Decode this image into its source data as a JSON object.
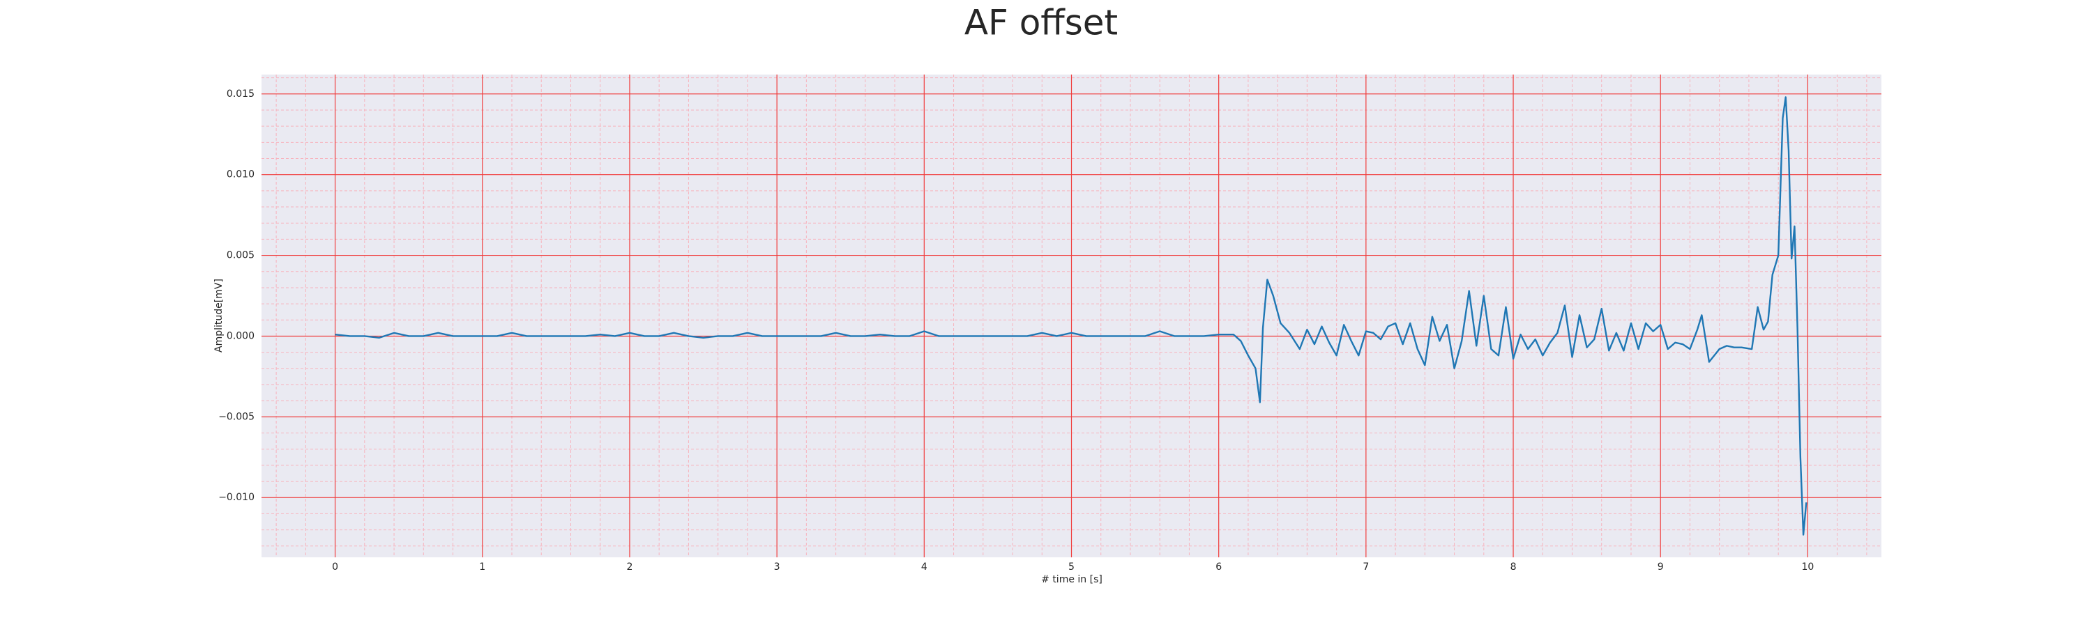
{
  "chart_data": {
    "type": "line",
    "title": "AF offset",
    "x_label": "# time in [s]",
    "y_label": "Amplitude[mV]",
    "color": "#1f77b4",
    "grid": true,
    "grid_color": "#f03c3c",
    "minor_grid_color": "#f7b3bd",
    "background": "#eaeaf2",
    "xlim": [
      -0.5,
      10.5
    ],
    "ylim": [
      -0.0137,
      0.0162
    ],
    "xticks": [
      0,
      1,
      2,
      3,
      4,
      5,
      6,
      7,
      8,
      9,
      10
    ],
    "yticks": [
      {
        "value": -0.01,
        "label": "−0.010"
      },
      {
        "value": -0.005,
        "label": "−0.005"
      },
      {
        "value": 0,
        "label": "0.000"
      },
      {
        "value": 0.005,
        "label": "0.005"
      },
      {
        "value": 0.01,
        "label": "0.010"
      },
      {
        "value": 0.015,
        "label": "0.015"
      }
    ],
    "x": [
      0,
      0.1,
      0.2,
      0.3,
      0.4,
      0.5,
      0.6,
      0.7,
      0.8,
      0.9,
      1,
      1.1,
      1.2,
      1.3,
      1.4,
      1.5,
      1.6,
      1.7,
      1.8,
      1.9,
      2,
      2.1,
      2.2,
      2.3,
      2.4,
      2.5,
      2.6,
      2.7,
      2.8,
      2.9,
      3,
      3.1,
      3.2,
      3.3,
      3.4,
      3.5,
      3.6,
      3.7,
      3.8,
      3.9,
      4,
      4.1,
      4.2,
      4.3,
      4.4,
      4.5,
      4.6,
      4.7,
      4.8,
      4.9,
      5,
      5.1,
      5.2,
      5.3,
      5.4,
      5.5,
      5.6,
      5.7,
      5.8,
      5.9,
      6,
      6.1,
      6.15,
      6.2,
      6.25,
      6.28,
      6.3,
      6.33,
      6.37,
      6.42,
      6.48,
      6.55,
      6.6,
      6.65,
      6.7,
      6.75,
      6.8,
      6.85,
      6.9,
      6.95,
      7,
      7.05,
      7.1,
      7.15,
      7.2,
      7.25,
      7.3,
      7.35,
      7.4,
      7.45,
      7.5,
      7.55,
      7.6,
      7.65,
      7.7,
      7.75,
      7.8,
      7.85,
      7.9,
      7.95,
      8,
      8.05,
      8.1,
      8.15,
      8.2,
      8.25,
      8.3,
      8.35,
      8.4,
      8.45,
      8.5,
      8.55,
      8.6,
      8.65,
      8.7,
      8.75,
      8.8,
      8.85,
      8.9,
      8.95,
      9,
      9.05,
      9.1,
      9.15,
      9.2,
      9.25,
      9.28,
      9.33,
      9.4,
      9.45,
      9.5,
      9.55,
      9.62,
      9.66,
      9.7,
      9.73,
      9.76,
      9.8,
      9.83,
      9.85,
      9.87,
      9.89,
      9.91,
      9.93,
      9.95,
      9.97,
      9.99
    ],
    "values": [
      0.0001,
      0,
      0,
      -0.0001,
      0.0002,
      0,
      0,
      0.0002,
      0,
      0,
      0,
      0,
      0.0002,
      0,
      0,
      0,
      0,
      0,
      0.0001,
      0,
      0.0002,
      0,
      0,
      0.0002,
      0,
      -0.0001,
      0,
      0,
      0.0002,
      0,
      0,
      0,
      0,
      0,
      0.0002,
      0,
      0,
      0.0001,
      0,
      0,
      0.0003,
      0,
      0,
      0,
      0,
      0,
      0,
      0,
      0.0002,
      0,
      0.0002,
      0,
      0,
      0,
      0,
      0,
      0.0003,
      0,
      0,
      0,
      0.0001,
      0.0001,
      -0.0003,
      -0.0012,
      -0.002,
      -0.0041,
      0.0005,
      0.0035,
      0.0025,
      0.0008,
      0.0002,
      -0.0008,
      0.0004,
      -0.0005,
      0.0006,
      -0.0004,
      -0.0012,
      0.0007,
      -0.0003,
      -0.0012,
      0.0003,
      0.0002,
      -0.0002,
      0.0006,
      0.0008,
      -0.0005,
      0.0008,
      -0.0008,
      -0.0018,
      0.0012,
      -0.0003,
      0.0007,
      -0.002,
      -0.0003,
      0.0028,
      -0.0006,
      0.0025,
      -0.0008,
      -0.0012,
      0.0018,
      -0.0014,
      0.0001,
      -0.0008,
      -0.0002,
      -0.0012,
      -0.0004,
      0.0002,
      0.0019,
      -0.0013,
      0.0013,
      -0.0007,
      -0.0002,
      0.0017,
      -0.0009,
      0.0002,
      -0.0009,
      0.0008,
      -0.0008,
      0.0008,
      0.0003,
      0.0007,
      -0.0008,
      -0.0004,
      -0.0005,
      -0.0008,
      0.0004,
      0.0013,
      -0.0016,
      -0.0008,
      -0.0006,
      -0.0007,
      -0.0007,
      -0.0008,
      0.0018,
      0.0004,
      0.0009,
      0.0038,
      0.005,
      0.0135,
      0.0148,
      0.0115,
      0.0048,
      0.0068,
      0.0005,
      -0.0075,
      -0.0123,
      -0.0103
    ]
  }
}
